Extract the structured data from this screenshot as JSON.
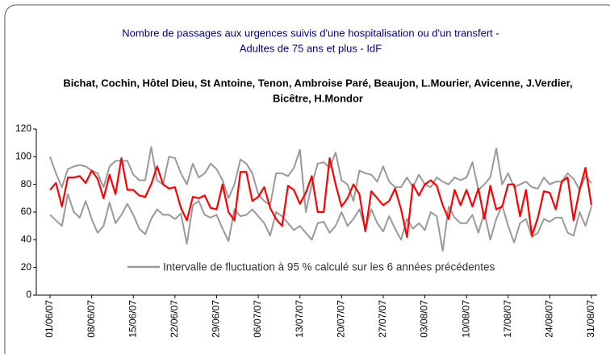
{
  "chart_data": {
    "type": "line",
    "title": [
      "Nombre de passages aux urgences suivis d'une hospitalisation ou d'un transfert -",
      "Adultes de 75 ans et plus - IdF"
    ],
    "subtitle": [
      "Bichat, Cochin, Hôtel Dieu, St Antoine, Tenon, Ambroise Paré, Beaujon, L.Mourier, Avicenne, J.Verdier,",
      "Bicêtre, H.Mondor"
    ],
    "categories": [
      "01/06/07",
      null,
      null,
      null,
      null,
      null,
      null,
      "08/06/07",
      null,
      null,
      null,
      null,
      null,
      null,
      "15/06/07",
      null,
      null,
      null,
      null,
      null,
      null,
      "22/06/07",
      null,
      null,
      null,
      null,
      null,
      null,
      "29/06/07",
      null,
      null,
      null,
      null,
      null,
      null,
      "06/07/07",
      null,
      null,
      null,
      null,
      null,
      null,
      "13/07/07",
      null,
      null,
      null,
      null,
      null,
      null,
      "20/07/07",
      null,
      null,
      null,
      null,
      null,
      null,
      "27/07/07",
      null,
      null,
      null,
      null,
      null,
      null,
      "03/08/07",
      null,
      null,
      null,
      null,
      null,
      null,
      "10/08/07",
      null,
      null,
      null,
      null,
      null,
      null,
      "17/08/07",
      null,
      null,
      null,
      null,
      null,
      null,
      "24/08/07",
      null,
      null,
      null,
      null,
      null,
      null,
      "31/08/07"
    ],
    "series": [
      {
        "color": "#ff0000",
        "values": [
          76,
          81,
          64,
          85,
          85,
          86,
          81,
          90,
          84,
          70,
          87,
          73,
          99,
          76,
          76,
          72,
          71,
          80,
          93,
          80,
          77,
          78,
          63,
          54,
          71,
          70,
          72,
          63,
          62,
          80,
          60,
          54,
          89,
          89,
          68,
          71,
          78,
          63,
          55,
          50,
          79,
          76,
          66,
          74,
          86,
          60,
          60,
          99,
          80,
          64,
          70,
          80,
          73,
          46,
          75,
          70,
          65,
          68,
          77,
          62,
          42,
          80,
          72,
          80,
          83,
          79,
          65,
          55,
          76,
          65,
          76,
          64,
          77,
          55,
          79,
          62,
          64,
          80,
          80,
          57,
          76,
          43,
          56,
          75,
          74,
          62,
          82,
          85,
          54,
          76,
          92,
          65
        ]
      },
      {
        "name": "Intervalle de fluctuation à 95 % calculé sur les 6 années précédentes",
        "color": "#999999",
        "values": [
          100,
          88,
          78,
          91,
          93,
          94,
          93,
          90,
          88,
          78,
          93,
          97,
          97,
          97,
          87,
          83,
          83,
          107,
          83,
          80,
          100,
          99,
          88,
          80,
          95,
          85,
          88,
          95,
          91,
          83,
          70,
          80,
          98,
          95,
          88,
          73,
          68,
          65,
          88,
          88,
          86,
          92,
          105,
          60,
          80,
          95,
          96,
          92,
          103,
          83,
          80,
          68,
          90,
          88,
          87,
          82,
          93,
          82,
          78,
          78,
          85,
          78,
          87,
          80,
          78,
          85,
          82,
          80,
          85,
          83,
          85,
          96,
          76,
          80,
          85,
          106,
          80,
          88,
          78,
          80,
          82,
          78,
          77,
          85,
          80,
          82,
          82,
          88,
          84,
          76,
          86,
          81
        ]
      },
      {
        "color": "#999999",
        "values": [
          58,
          54,
          50,
          73,
          60,
          56,
          68,
          55,
          45,
          50,
          67,
          52,
          58,
          66,
          58,
          48,
          44,
          55,
          62,
          58,
          58,
          55,
          59,
          37,
          65,
          68,
          58,
          56,
          58,
          48,
          39,
          62,
          57,
          58,
          62,
          57,
          52,
          43,
          60,
          57,
          52,
          47,
          50,
          45,
          40,
          52,
          53,
          45,
          50,
          60,
          50,
          55,
          62,
          48,
          62,
          52,
          46,
          57,
          48,
          40,
          55,
          48,
          52,
          47,
          60,
          57,
          32,
          64,
          56,
          52,
          52,
          58,
          45,
          60,
          40,
          55,
          65,
          50,
          38,
          52,
          55,
          42,
          45,
          55,
          53,
          56,
          56,
          45,
          43,
          60,
          50,
          64
        ]
      }
    ],
    "ylim": [
      0,
      120
    ],
    "yticks": [
      0,
      20,
      40,
      60,
      80,
      100,
      120
    ],
    "grid": false
  }
}
